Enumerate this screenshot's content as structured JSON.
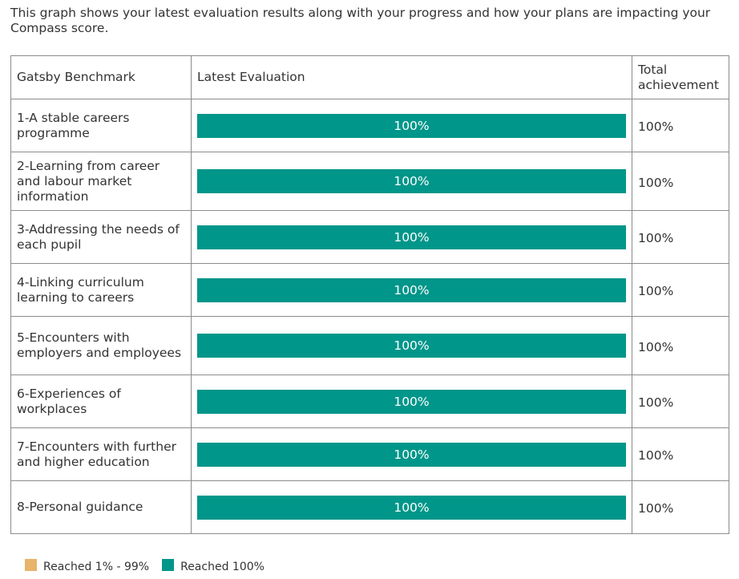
{
  "intro": "This graph shows your latest evaluation results along with your progress and how your plans are impacting your Compass score.",
  "columns": {
    "benchmark": "Gatsby Benchmark",
    "latest": "Latest Evaluation",
    "total": "Total achievement"
  },
  "colors": {
    "reached_full": "#00968a",
    "reached_partial": "#e6b46a",
    "border": "#8c8c8c"
  },
  "rows": [
    {
      "benchmark": "1-A stable careers programme",
      "latest_label": "100%",
      "latest_fraction": 1.0,
      "total": "100%"
    },
    {
      "benchmark": "2-Learning from career and labour market information",
      "latest_label": "100%",
      "latest_fraction": 1.0,
      "total": "100%"
    },
    {
      "benchmark": "3-Addressing the needs of each pupil",
      "latest_label": "100%",
      "latest_fraction": 1.0,
      "total": "100%"
    },
    {
      "benchmark": "4-Linking curriculum learning to careers",
      "latest_label": "100%",
      "latest_fraction": 1.0,
      "total": "100%"
    },
    {
      "benchmark": "5-Encounters with employers and employees",
      "latest_label": "100%",
      "latest_fraction": 1.0,
      "total": "100%"
    },
    {
      "benchmark": "6-Experiences of workplaces",
      "latest_label": "100%",
      "latest_fraction": 1.0,
      "total": "100%"
    },
    {
      "benchmark": "7-Encounters with further and higher education",
      "latest_label": "100%",
      "latest_fraction": 1.0,
      "total": "100%"
    },
    {
      "benchmark": "8-Personal guidance",
      "latest_label": "100%",
      "latest_fraction": 1.0,
      "total": "100%"
    }
  ],
  "legend": [
    {
      "label": "Reached 1% - 99%",
      "color": "#e6b46a"
    },
    {
      "label": "Reached 100%",
      "color": "#00968a"
    }
  ]
}
